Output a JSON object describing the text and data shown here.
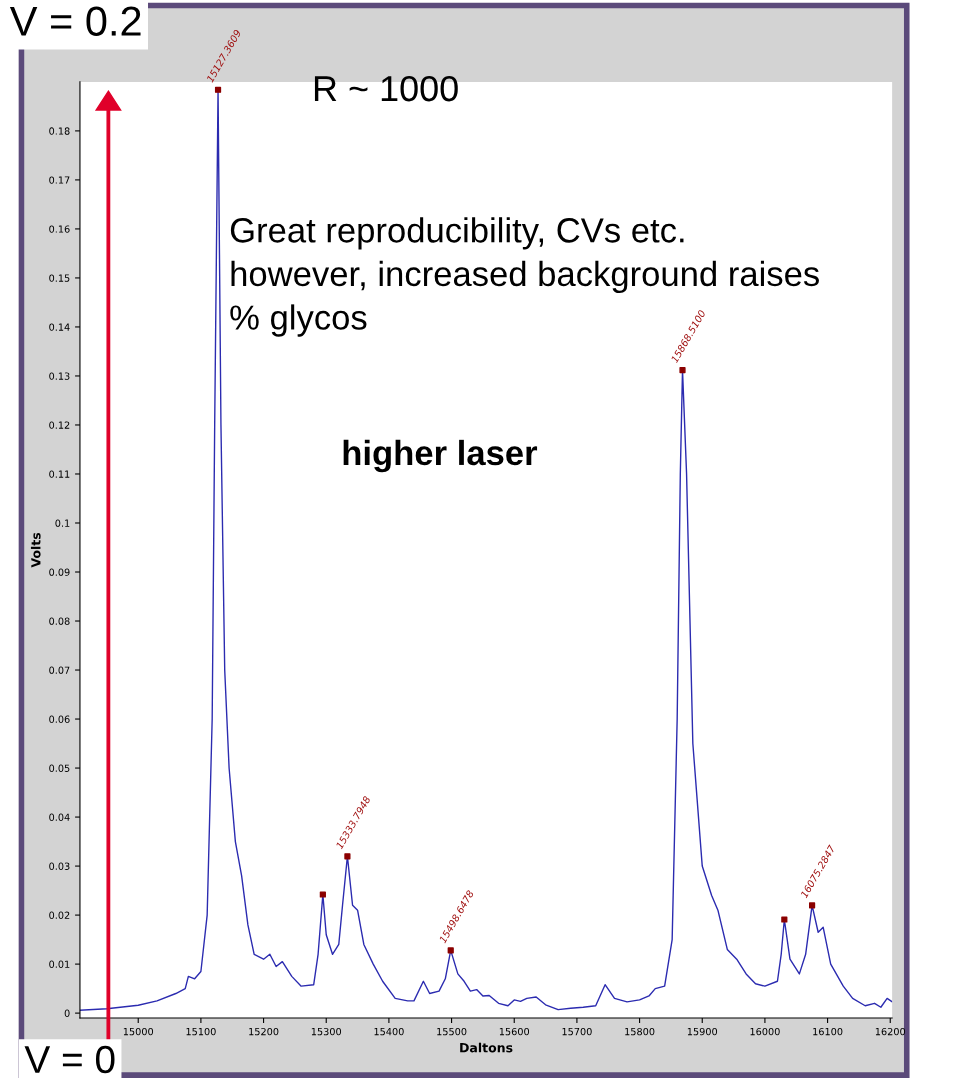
{
  "chart_data": {
    "type": "line",
    "xlabel": "Daltons",
    "ylabel": "Volts",
    "xlim": [
      14907,
      16203
    ],
    "xticks": [
      15000,
      15100,
      15200,
      15300,
      15400,
      15500,
      15600,
      15700,
      15800,
      15900,
      16000,
      16100,
      16200
    ],
    "ylim": [
      -0.001,
      0.19
    ],
    "yticks": [
      0,
      0.01,
      0.02,
      0.03,
      0.04,
      0.05,
      0.06,
      0.07,
      0.08,
      0.09,
      0.1,
      0.11,
      0.12,
      0.13,
      0.14,
      0.15,
      0.16,
      0.17,
      0.18
    ],
    "grid": false,
    "legend": false,
    "series": [
      {
        "type": "line",
        "color": "#2b2bb0",
        "marker": "none",
        "x": [
          14907,
          14950,
          15000,
          15030,
          15060,
          15075,
          15080,
          15090,
          15100,
          15110,
          15118,
          15122,
          15127.36,
          15132,
          15138,
          15145,
          15155,
          15165,
          15175,
          15185,
          15200,
          15210,
          15220,
          15230,
          15245,
          15260,
          15280,
          15287,
          15294.6,
          15300,
          15310,
          15320,
          15326,
          15333.79,
          15342,
          15350,
          15360,
          15375,
          15390,
          15410,
          15430,
          15440,
          15455,
          15465,
          15480,
          15490,
          15498.65,
          15510,
          15520,
          15530,
          15540,
          15550,
          15560,
          15575,
          15590,
          15600,
          15610,
          15620,
          15635,
          15650,
          15670,
          15690,
          15710,
          15730,
          15745,
          15760,
          15780,
          15800,
          15815,
          15825,
          15840,
          15852,
          15860,
          15865,
          15868.51,
          15875,
          15885,
          15900,
          15915,
          15925,
          15940,
          15955,
          15970,
          15985,
          16000,
          16020,
          16026,
          16031,
          16040,
          16055,
          16065,
          16075.28,
          16085,
          16093,
          16105,
          16125,
          16140,
          16160,
          16175,
          16185,
          16195,
          16203
        ],
        "values": [
          0.0006,
          0.0009,
          0.0016,
          0.0025,
          0.004,
          0.005,
          0.0075,
          0.007,
          0.0085,
          0.02,
          0.06,
          0.12,
          0.1884,
          0.12,
          0.07,
          0.05,
          0.035,
          0.028,
          0.018,
          0.012,
          0.011,
          0.012,
          0.0095,
          0.0105,
          0.0075,
          0.0055,
          0.0058,
          0.012,
          0.0242,
          0.016,
          0.012,
          0.014,
          0.022,
          0.032,
          0.022,
          0.021,
          0.014,
          0.01,
          0.0065,
          0.003,
          0.0025,
          0.0025,
          0.0065,
          0.004,
          0.0045,
          0.007,
          0.0128,
          0.008,
          0.0065,
          0.0045,
          0.0048,
          0.0035,
          0.0036,
          0.002,
          0.0015,
          0.0027,
          0.0024,
          0.003,
          0.0033,
          0.0017,
          0.0007,
          0.001,
          0.0012,
          0.0015,
          0.0058,
          0.003,
          0.0023,
          0.0027,
          0.0035,
          0.005,
          0.0055,
          0.015,
          0.06,
          0.11,
          0.1312,
          0.11,
          0.055,
          0.03,
          0.024,
          0.021,
          0.013,
          0.011,
          0.008,
          0.006,
          0.0055,
          0.0065,
          0.012,
          0.0191,
          0.011,
          0.008,
          0.012,
          0.022,
          0.0165,
          0.0175,
          0.01,
          0.0055,
          0.003,
          0.0015,
          0.002,
          0.0012,
          0.003,
          0.0023
        ]
      },
      {
        "type": "scatter",
        "color": "#8b0000",
        "marker": "square",
        "x": [
          15127.36,
          15294.6,
          15333.79,
          15498.65,
          15868.51,
          16031,
          16075.28
        ],
        "values": [
          0.1884,
          0.0242,
          0.032,
          0.0128,
          0.1312,
          0.0191,
          0.022
        ]
      }
    ],
    "annotations": [
      {
        "text": "15127.3609",
        "x": 15127.36,
        "y": 0.1884
      },
      {
        "text": "15333.7948",
        "x": 15333.79,
        "y": 0.032
      },
      {
        "text": "15498.6478",
        "x": 15498.65,
        "y": 0.0128
      },
      {
        "text": "15868.5100",
        "x": 15868.51,
        "y": 0.1312
      },
      {
        "text": "16075.2847",
        "x": 16075.28,
        "y": 0.022
      },
      "V = 0.2",
      "V = 0",
      "R ~ 1000",
      "Great reproducibility, CVs etc.\nhowever, increased background raises\n% glycos",
      "higher laser"
    ]
  }
}
